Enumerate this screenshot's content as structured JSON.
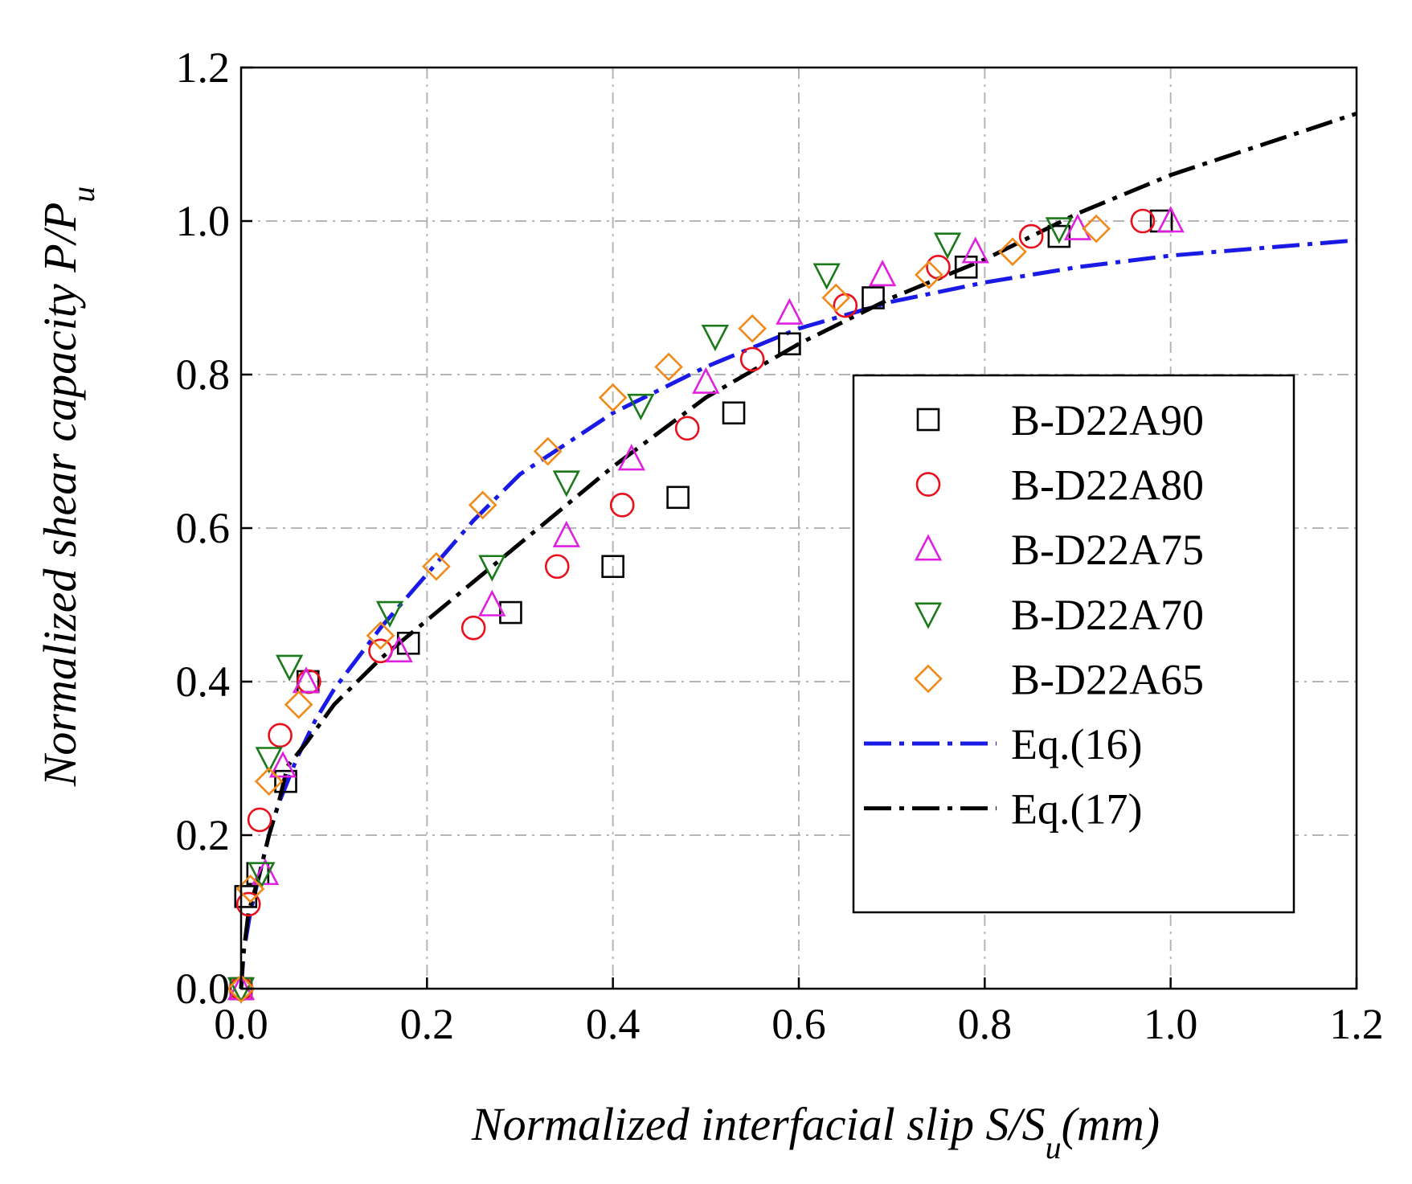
{
  "chart_data": {
    "type": "scatter",
    "xlabel": {
      "main": "Normalized interfacial slip S/S",
      "sub": "u",
      "tail": "(mm)"
    },
    "ylabel": {
      "main": "Normalized shear capacity P/P",
      "sub": "u"
    },
    "xlim": [
      0,
      1.2
    ],
    "ylim": [
      0,
      1.2
    ],
    "xticks": [
      "0.0",
      "0.2",
      "0.4",
      "0.6",
      "0.8",
      "1.0",
      "1.2"
    ],
    "yticks": [
      "0.0",
      "0.2",
      "0.4",
      "0.6",
      "0.8",
      "1.0",
      "1.2"
    ],
    "grid": true,
    "legend_position": "right, inside plot area",
    "series": [
      {
        "name": "B-D22A90",
        "marker": "square",
        "color": "#000000",
        "points": [
          [
            0,
            0
          ],
          [
            0.005,
            0.12
          ],
          [
            0.018,
            0.15
          ],
          [
            0.048,
            0.27
          ],
          [
            0.072,
            0.4
          ],
          [
            0.18,
            0.45
          ],
          [
            0.29,
            0.49
          ],
          [
            0.4,
            0.55
          ],
          [
            0.47,
            0.64
          ],
          [
            0.53,
            0.75
          ],
          [
            0.59,
            0.84
          ],
          [
            0.68,
            0.9
          ],
          [
            0.78,
            0.94
          ],
          [
            0.88,
            0.98
          ],
          [
            0.99,
            1.0
          ]
        ]
      },
      {
        "name": "B-D22A80",
        "marker": "circle",
        "color": "#e8101c",
        "points": [
          [
            0,
            0
          ],
          [
            0.008,
            0.11
          ],
          [
            0.02,
            0.22
          ],
          [
            0.042,
            0.33
          ],
          [
            0.073,
            0.4
          ],
          [
            0.15,
            0.44
          ],
          [
            0.25,
            0.47
          ],
          [
            0.34,
            0.55
          ],
          [
            0.41,
            0.63
          ],
          [
            0.48,
            0.73
          ],
          [
            0.55,
            0.82
          ],
          [
            0.65,
            0.89
          ],
          [
            0.75,
            0.94
          ],
          [
            0.85,
            0.98
          ],
          [
            0.97,
            1.0
          ]
        ]
      },
      {
        "name": "B-D22A75",
        "marker": "triangle-up",
        "color": "#e020e0",
        "points": [
          [
            0,
            0
          ],
          [
            0.026,
            0.15
          ],
          [
            0.045,
            0.29
          ],
          [
            0.07,
            0.4
          ],
          [
            0.17,
            0.44
          ],
          [
            0.27,
            0.5
          ],
          [
            0.35,
            0.59
          ],
          [
            0.42,
            0.69
          ],
          [
            0.5,
            0.79
          ],
          [
            0.59,
            0.88
          ],
          [
            0.69,
            0.93
          ],
          [
            0.79,
            0.96
          ],
          [
            0.9,
            0.99
          ],
          [
            1.0,
            1.0
          ]
        ]
      },
      {
        "name": "B-D22A70",
        "marker": "triangle-down",
        "color": "#1a7a1a",
        "points": [
          [
            0,
            0
          ],
          [
            0.022,
            0.15
          ],
          [
            0.03,
            0.3
          ],
          [
            0.052,
            0.42
          ],
          [
            0.16,
            0.49
          ],
          [
            0.27,
            0.55
          ],
          [
            0.35,
            0.66
          ],
          [
            0.43,
            0.76
          ],
          [
            0.51,
            0.85
          ],
          [
            0.63,
            0.93
          ],
          [
            0.76,
            0.97
          ],
          [
            0.88,
            0.99
          ]
        ]
      },
      {
        "name": "B-D22A65",
        "marker": "diamond",
        "color": "#f08a1a",
        "points": [
          [
            0,
            0
          ],
          [
            0.01,
            0.13
          ],
          [
            0.03,
            0.27
          ],
          [
            0.062,
            0.37
          ],
          [
            0.15,
            0.46
          ],
          [
            0.21,
            0.55
          ],
          [
            0.26,
            0.63
          ],
          [
            0.33,
            0.7
          ],
          [
            0.4,
            0.77
          ],
          [
            0.46,
            0.81
          ],
          [
            0.55,
            0.86
          ],
          [
            0.64,
            0.9
          ],
          [
            0.74,
            0.93
          ],
          [
            0.83,
            0.96
          ],
          [
            0.92,
            0.99
          ]
        ]
      }
    ],
    "curves": [
      {
        "name": "Eq.(16)",
        "color": "#1a1ae6",
        "points": [
          [
            0,
            0
          ],
          [
            0.003,
            0.05
          ],
          [
            0.01,
            0.1
          ],
          [
            0.02,
            0.15
          ],
          [
            0.03,
            0.2
          ],
          [
            0.04,
            0.24
          ],
          [
            0.06,
            0.3
          ],
          [
            0.08,
            0.35
          ],
          [
            0.1,
            0.39
          ],
          [
            0.15,
            0.47
          ],
          [
            0.2,
            0.54
          ],
          [
            0.25,
            0.61
          ],
          [
            0.3,
            0.67
          ],
          [
            0.35,
            0.71
          ],
          [
            0.4,
            0.75
          ],
          [
            0.5,
            0.81
          ],
          [
            0.6,
            0.86
          ],
          [
            0.7,
            0.895
          ],
          [
            0.8,
            0.92
          ],
          [
            0.9,
            0.94
          ],
          [
            1.0,
            0.955
          ],
          [
            1.1,
            0.965
          ],
          [
            1.2,
            0.975
          ]
        ]
      },
      {
        "name": "Eq.(17)",
        "color": "#000000",
        "points": [
          [
            0,
            0
          ],
          [
            0.002,
            0.04
          ],
          [
            0.008,
            0.1
          ],
          [
            0.02,
            0.15
          ],
          [
            0.03,
            0.2
          ],
          [
            0.04,
            0.24
          ],
          [
            0.05,
            0.29
          ],
          [
            0.07,
            0.32
          ],
          [
            0.1,
            0.37
          ],
          [
            0.15,
            0.43
          ],
          [
            0.2,
            0.48
          ],
          [
            0.3,
            0.58
          ],
          [
            0.4,
            0.68
          ],
          [
            0.5,
            0.77
          ],
          [
            0.6,
            0.84
          ],
          [
            0.7,
            0.9
          ],
          [
            0.8,
            0.95
          ],
          [
            0.9,
            1.01
          ],
          [
            1.0,
            1.06
          ],
          [
            1.1,
            1.1
          ],
          [
            1.2,
            1.14
          ]
        ]
      }
    ]
  }
}
